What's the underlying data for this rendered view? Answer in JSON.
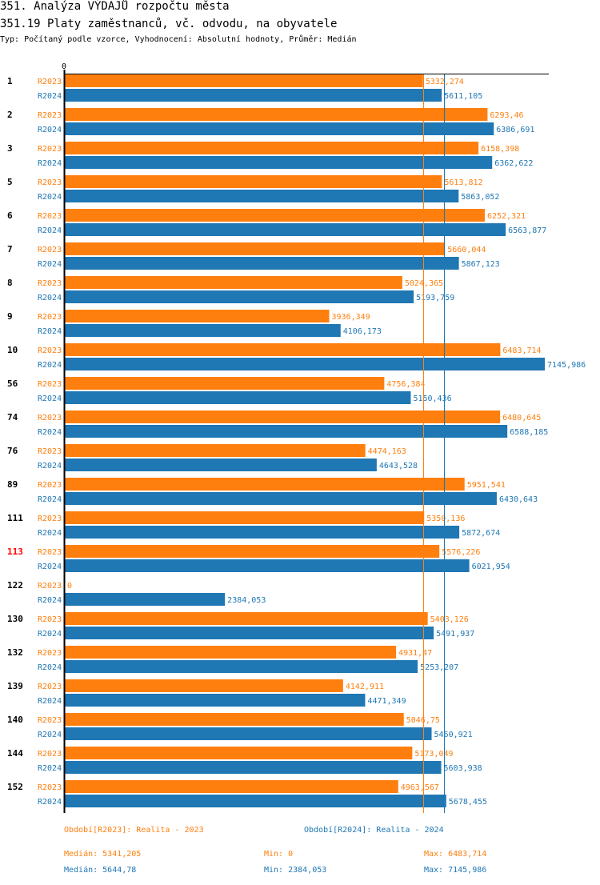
{
  "header": {
    "title": "351. Analýza VÝDAJŮ rozpočtu města",
    "subtitle": "351.19 Platy zaměstnanců, vč. odvodu, na obyvatele",
    "info": "Typ: Počítaný podle vzorce, Vyhodnocení: Absolutní hodnoty, Průměr: Medián"
  },
  "chart_data": {
    "type": "bar",
    "orientation": "horizontal",
    "axis_zero_label": "0",
    "xlim": [
      0,
      7145.986
    ],
    "categories": [
      "1",
      "2",
      "3",
      "5",
      "6",
      "7",
      "8",
      "9",
      "10",
      "56",
      "74",
      "76",
      "89",
      "111",
      "113",
      "122",
      "130",
      "132",
      "139",
      "140",
      "144",
      "152"
    ],
    "highlight_category": "113",
    "series": [
      {
        "name": "R2023",
        "color": "#ff7f0e",
        "values": [
          5332.274,
          6293.46,
          6158.398,
          5613.812,
          6252.321,
          5660.044,
          5024.365,
          3936.349,
          6483.714,
          4756.384,
          6480.645,
          4474.163,
          5951.541,
          5350.136,
          5576.226,
          0,
          5403.126,
          4931.47,
          4142.911,
          5046.75,
          5173.049,
          4963.567
        ],
        "labels": [
          "5332,274",
          "6293,46",
          "6158,398",
          "5613,812",
          "6252,321",
          "5660,044",
          "5024,365",
          "3936,349",
          "6483,714",
          "4756,384",
          "6480,645",
          "4474,163",
          "5951,541",
          "5350,136",
          "5576,226",
          "0",
          "5403,126",
          "4931,47",
          "4142,911",
          "5046,75",
          "5173,049",
          "4963,567"
        ],
        "median": 5341.205
      },
      {
        "name": "R2024",
        "color": "#1f77b4",
        "values": [
          5611.105,
          6386.691,
          6362.622,
          5863.052,
          6563.877,
          5867.123,
          5193.759,
          4106.173,
          7145.986,
          5150.436,
          6588.185,
          4643.528,
          6430.643,
          5872.674,
          6021.954,
          2384.053,
          5491.937,
          5253.207,
          4471.349,
          5460.921,
          5603.938,
          5678.455
        ],
        "labels": [
          "5611,105",
          "6386,691",
          "6362,622",
          "5863,052",
          "6563,877",
          "5867,123",
          "5193,759",
          "4106,173",
          "7145,986",
          "5150,436",
          "6588,185",
          "4643,528",
          "6430,643",
          "5872,674",
          "6021,954",
          "2384,053",
          "5491,937",
          "5253,207",
          "4471,349",
          "5460,921",
          "5603,938",
          "5678,455"
        ],
        "median": 5644.78
      }
    ],
    "legend": {
      "r2023": {
        "period": "Období[R2023]: Realita - 2023",
        "median": "Medián: 5341,205",
        "min": "Min: 0",
        "max": "Max: 6483,714"
      },
      "r2024": {
        "period": "Období[R2024]: Realita - 2024",
        "median": "Medián: 5644,78",
        "min": "Min: 2384,053",
        "max": "Max: 7145,986"
      }
    }
  }
}
